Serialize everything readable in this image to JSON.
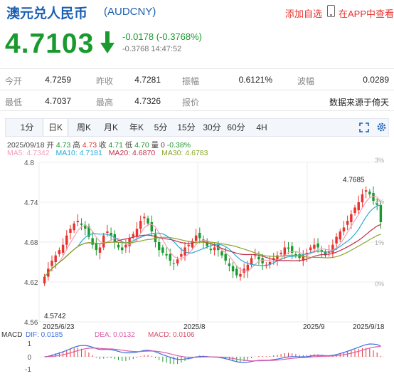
{
  "header": {
    "title": "澳元兑人民币",
    "code": "(AUDCNY)",
    "add_watch": "添加自选",
    "app_link": "在APP中查看"
  },
  "quote": {
    "price": "4.7103",
    "change": "-0.0178 (-0.3768%)",
    "change_detail": "-0.3768 14:47:52",
    "colors": {
      "down": "#1a9a2e",
      "up": "#e8322e",
      "brand": "#1a5fb4"
    }
  },
  "stats": {
    "row1": [
      {
        "label": "今开",
        "value": "4.7259"
      },
      {
        "label": "昨收",
        "value": "4.7281"
      },
      {
        "label": "振幅",
        "value": "0.6121%"
      },
      {
        "label": "波幅",
        "value": "0.0289"
      }
    ],
    "row2": [
      {
        "label": "最低",
        "value": "4.7037"
      },
      {
        "label": "最高",
        "value": "4.7326"
      },
      {
        "label": "报价",
        "value": "数据来源于倚天"
      }
    ]
  },
  "tabs": [
    "1分",
    "日K",
    "周K",
    "月K",
    "年K",
    "5分",
    "15分",
    "30分",
    "60分",
    "4H"
  ],
  "active_tab": "日K",
  "ohlc": {
    "date": "2025/09/18",
    "open_label": "开",
    "open": "4.73",
    "high_label": "高",
    "high": "4.73",
    "close_label": "收",
    "close": "4.71",
    "low_label": "低",
    "low": "4.70",
    "vol_label": "量",
    "vol": "0",
    "pct": "-0.38%"
  },
  "ma": [
    {
      "label": "MA5: 4.7342",
      "color": "#f4a0b8"
    },
    {
      "label": "MA10: 4.7181",
      "color": "#2aa9d6"
    },
    {
      "label": "MA20: 4.6870",
      "color": "#c0304a"
    },
    {
      "label": "MA30: 4.6783",
      "color": "#8aa62c"
    }
  ],
  "chart_data": {
    "type": "candlestick",
    "y_ticks": [
      "4.8",
      "4.74",
      "4.68",
      "4.62",
      "4.56"
    ],
    "ylim": [
      4.56,
      4.8
    ],
    "pct_ticks": [
      "3%",
      "2%",
      "1%",
      "0%"
    ],
    "x_ticks": [
      "2025/6/23",
      "2025/8",
      "2025/9",
      "2025/9/18"
    ],
    "max_label": "4.7685",
    "min_label": "4.5742",
    "closes": [
      4.628,
      4.64,
      4.652,
      4.66,
      4.668,
      4.676,
      4.69,
      4.7,
      4.708,
      4.712,
      4.706,
      4.7,
      4.688,
      4.676,
      4.668,
      4.672,
      4.69,
      4.696,
      4.69,
      4.68,
      4.672,
      4.668,
      4.676,
      4.686,
      4.692,
      4.7,
      4.712,
      4.718,
      4.708,
      4.696,
      4.68,
      4.668,
      4.664,
      4.66,
      4.652,
      4.648,
      4.654,
      4.662,
      4.672,
      4.676,
      4.682,
      4.69,
      4.686,
      4.68,
      4.674,
      4.668,
      4.672,
      4.668,
      4.66,
      4.652,
      4.644,
      4.636,
      4.63,
      4.632,
      4.64,
      4.646,
      4.656,
      4.66,
      4.654,
      4.648,
      4.646,
      4.65,
      4.656,
      4.66,
      4.664,
      4.672,
      4.67,
      4.664,
      4.66,
      4.656,
      4.66,
      4.664,
      4.672,
      4.676,
      4.672,
      4.666,
      4.66,
      4.666,
      4.676,
      4.688,
      4.696,
      4.702,
      4.712,
      4.722,
      4.732,
      4.74,
      4.752,
      4.758,
      4.752,
      4.742,
      4.736,
      4.71
    ],
    "macd": {
      "label": "MACD",
      "dif": "DIF: 0.0185",
      "dea": "DEA: 0.0132",
      "macd_val": "MACD: 0.0106",
      "y_ticks": [
        "1",
        "0",
        "-1"
      ],
      "colors": {
        "dif": "#3a6fe0",
        "dea": "#e05aa8",
        "macd": "#d44d6a"
      }
    }
  }
}
